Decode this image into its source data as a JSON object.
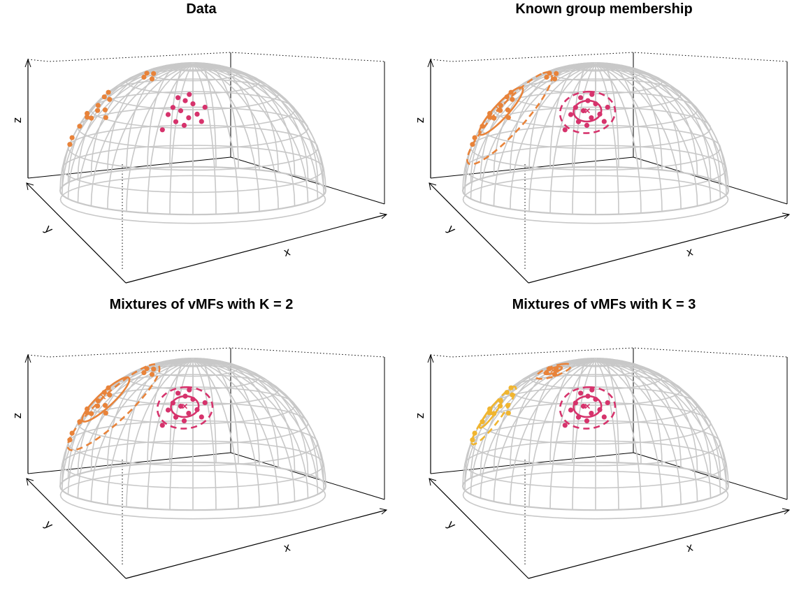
{
  "colors": {
    "grid": "#c8c8c8",
    "box": "#000000",
    "group_orange": "#e8833a",
    "group_pink": "#d6336c",
    "group_gold": "#f0b530"
  },
  "chart_data": [
    {
      "type": "scatter",
      "title": "Data",
      "xlabel": "x",
      "ylabel": "y",
      "zlabel": "z",
      "surface": "upper hemisphere (unit sphere)",
      "points": [
        {
          "group": "orange",
          "lon": 200,
          "lat": 32
        },
        {
          "group": "orange",
          "lon": 205,
          "lat": 38
        },
        {
          "group": "orange",
          "lon": 195,
          "lat": 28
        },
        {
          "group": "orange",
          "lon": 210,
          "lat": 34
        },
        {
          "group": "orange",
          "lon": 215,
          "lat": 40
        },
        {
          "group": "orange",
          "lon": 190,
          "lat": 36
        },
        {
          "group": "orange",
          "lon": 208,
          "lat": 30
        },
        {
          "group": "orange",
          "lon": 218,
          "lat": 33
        },
        {
          "group": "orange",
          "lon": 202,
          "lat": 44
        },
        {
          "group": "orange",
          "lon": 185,
          "lat": 24
        },
        {
          "group": "orange",
          "lon": 178,
          "lat": 22
        },
        {
          "group": "orange",
          "lon": 222,
          "lat": 28
        },
        {
          "group": "orange",
          "lon": 230,
          "lat": 55
        },
        {
          "group": "orange",
          "lon": 236,
          "lat": 58
        },
        {
          "group": "orange",
          "lon": 240,
          "lat": 52
        },
        {
          "group": "orange",
          "lon": 226,
          "lat": 60
        },
        {
          "group": "orange",
          "lon": 198,
          "lat": 48
        },
        {
          "group": "pink",
          "lon": 264,
          "lat": 28
        },
        {
          "group": "pink",
          "lon": 268,
          "lat": 24
        },
        {
          "group": "pink",
          "lon": 260,
          "lat": 30
        },
        {
          "group": "pink",
          "lon": 272,
          "lat": 26
        },
        {
          "group": "pink",
          "lon": 266,
          "lat": 20
        },
        {
          "group": "pink",
          "lon": 262,
          "lat": 22
        },
        {
          "group": "pink",
          "lon": 270,
          "lat": 32
        },
        {
          "group": "pink",
          "lon": 258,
          "lat": 26
        },
        {
          "group": "pink",
          "lon": 274,
          "lat": 22
        },
        {
          "group": "pink",
          "lon": 266,
          "lat": 34
        },
        {
          "group": "pink",
          "lon": 256,
          "lat": 18
        },
        {
          "group": "pink",
          "lon": 276,
          "lat": 30
        },
        {
          "group": "pink",
          "lon": 262,
          "lat": 36
        },
        {
          "group": "pink",
          "lon": 268,
          "lat": 38
        }
      ],
      "circles": []
    },
    {
      "type": "scatter",
      "title": "Known group membership",
      "xlabel": "x",
      "ylabel": "y",
      "zlabel": "z",
      "surface": "upper hemisphere (unit sphere)",
      "points": "same as panel 1",
      "circles": [
        {
          "group": "orange",
          "center": {
            "lon": 205,
            "lat": 36
          },
          "radius_deg": 14,
          "style": "solid"
        },
        {
          "group": "orange",
          "center": {
            "lon": 205,
            "lat": 36
          },
          "radius_deg": 28,
          "style": "dashed"
        },
        {
          "group": "pink",
          "center": {
            "lon": 266,
            "lat": 28
          },
          "radius_deg": 6,
          "style": "solid"
        },
        {
          "group": "pink",
          "center": {
            "lon": 266,
            "lat": 28
          },
          "radius_deg": 12,
          "style": "dashed"
        }
      ]
    },
    {
      "type": "scatter",
      "title": "Mixtures of vMFs with K = 2",
      "xlabel": "x",
      "ylabel": "y",
      "zlabel": "z",
      "surface": "upper hemisphere (unit sphere)",
      "points": "same as panel 1",
      "circles": [
        {
          "group": "orange",
          "center": {
            "lon": 208,
            "lat": 40
          },
          "radius_deg": 14,
          "style": "solid"
        },
        {
          "group": "orange",
          "center": {
            "lon": 208,
            "lat": 40
          },
          "radius_deg": 28,
          "style": "dashed"
        },
        {
          "group": "pink",
          "center": {
            "lon": 266,
            "lat": 28
          },
          "radius_deg": 6,
          "style": "solid"
        },
        {
          "group": "pink",
          "center": {
            "lon": 266,
            "lat": 28
          },
          "radius_deg": 12,
          "style": "dashed"
        }
      ]
    },
    {
      "type": "scatter",
      "title": "Mixtures of vMFs with K = 3",
      "xlabel": "x",
      "ylabel": "y",
      "zlabel": "z",
      "surface": "upper hemisphere (unit sphere)",
      "points": "same as panel 1 (orange lower cluster recolored gold)",
      "circles": [
        {
          "group": "gold",
          "center": {
            "lon": 200,
            "lat": 32
          },
          "radius_deg": 8,
          "style": "solid"
        },
        {
          "group": "gold",
          "center": {
            "lon": 200,
            "lat": 32
          },
          "radius_deg": 16,
          "style": "dashed"
        },
        {
          "group": "orange",
          "center": {
            "lon": 234,
            "lat": 57
          },
          "radius_deg": 4,
          "style": "solid"
        },
        {
          "group": "orange",
          "center": {
            "lon": 234,
            "lat": 57
          },
          "radius_deg": 8,
          "style": "dashed"
        },
        {
          "group": "pink",
          "center": {
            "lon": 266,
            "lat": 28
          },
          "radius_deg": 6,
          "style": "solid"
        },
        {
          "group": "pink",
          "center": {
            "lon": 266,
            "lat": 28
          },
          "radius_deg": 12,
          "style": "dashed"
        }
      ]
    }
  ]
}
